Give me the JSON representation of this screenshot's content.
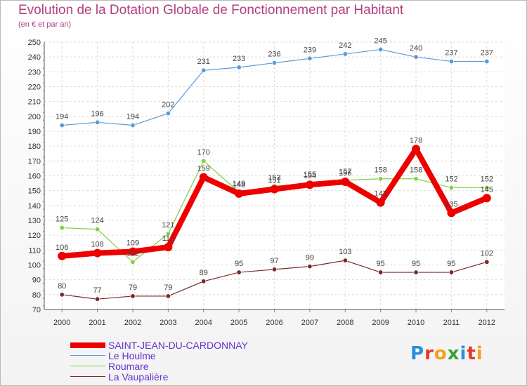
{
  "header": {
    "title": "Evolution de la Dotation Globale de Fonctionnement par Habitant",
    "subtitle": "(en € et par an)"
  },
  "logo": {
    "text": "Proxiti",
    "letters": [
      "P",
      "r",
      "o",
      "x",
      "i",
      "t",
      "i"
    ],
    "colors": [
      "#2a8fd8",
      "#e23a2a",
      "#f2a21a",
      "#3aa23a",
      "#2a8fd8",
      "#e23a2a",
      "#f2a21a"
    ]
  },
  "chart_data": {
    "type": "line",
    "title": "Evolution de la Dotation Globale de Fonctionnement par Habitant",
    "subtitle": "(en € et par an)",
    "xlabel": "",
    "ylabel": "",
    "categories": [
      "2000",
      "2001",
      "2002",
      "2003",
      "2004",
      "2005",
      "2006",
      "2007",
      "2008",
      "2009",
      "2010",
      "2011",
      "2012"
    ],
    "ylim": [
      70,
      250
    ],
    "yticks": [
      70,
      80,
      90,
      100,
      110,
      120,
      130,
      140,
      150,
      160,
      170,
      180,
      190,
      200,
      210,
      220,
      230,
      240,
      250
    ],
    "grid": true,
    "series": [
      {
        "name": "SAINT-JEAN-DU-CARDONNAY",
        "color": "#ee0000",
        "values": [
          106,
          108,
          109,
          112,
          159,
          148,
          151,
          154,
          156,
          142,
          178,
          135,
          145
        ],
        "labels": [
          "106",
          "108",
          "109",
          "112",
          "159",
          "148",
          "151",
          "154",
          "156",
          "142",
          "178",
          "135",
          "145"
        ]
      },
      {
        "name": "Le Houlme",
        "color": "#5b9bd5",
        "values": [
          194,
          196,
          194,
          202,
          231,
          233,
          236,
          239,
          242,
          245,
          240,
          237,
          237
        ],
        "labels": [
          "194",
          "196",
          "194",
          "202",
          "231",
          "233",
          "236",
          "239",
          "242",
          "245",
          "240",
          "237",
          "237"
        ]
      },
      {
        "name": "Roumare",
        "color": "#80d040",
        "values": [
          125,
          124,
          102,
          121,
          170,
          149,
          153,
          155,
          157,
          158,
          158,
          152,
          152
        ],
        "labels": [
          "125",
          "124",
          "102",
          "121",
          "170",
          "149",
          "153",
          "155",
          "157",
          "158",
          "158",
          "152",
          "152"
        ]
      },
      {
        "name": "La Vaupalière",
        "color": "#7a2a2a",
        "values": [
          80,
          77,
          79,
          79,
          89,
          95,
          97,
          99,
          103,
          95,
          95,
          95,
          102
        ],
        "labels": [
          "80",
          "77",
          "79",
          "79",
          "89",
          "95",
          "97",
          "99",
          "103",
          "95",
          "95",
          "95",
          "102"
        ]
      }
    ],
    "legend_position": "bottom-left"
  }
}
